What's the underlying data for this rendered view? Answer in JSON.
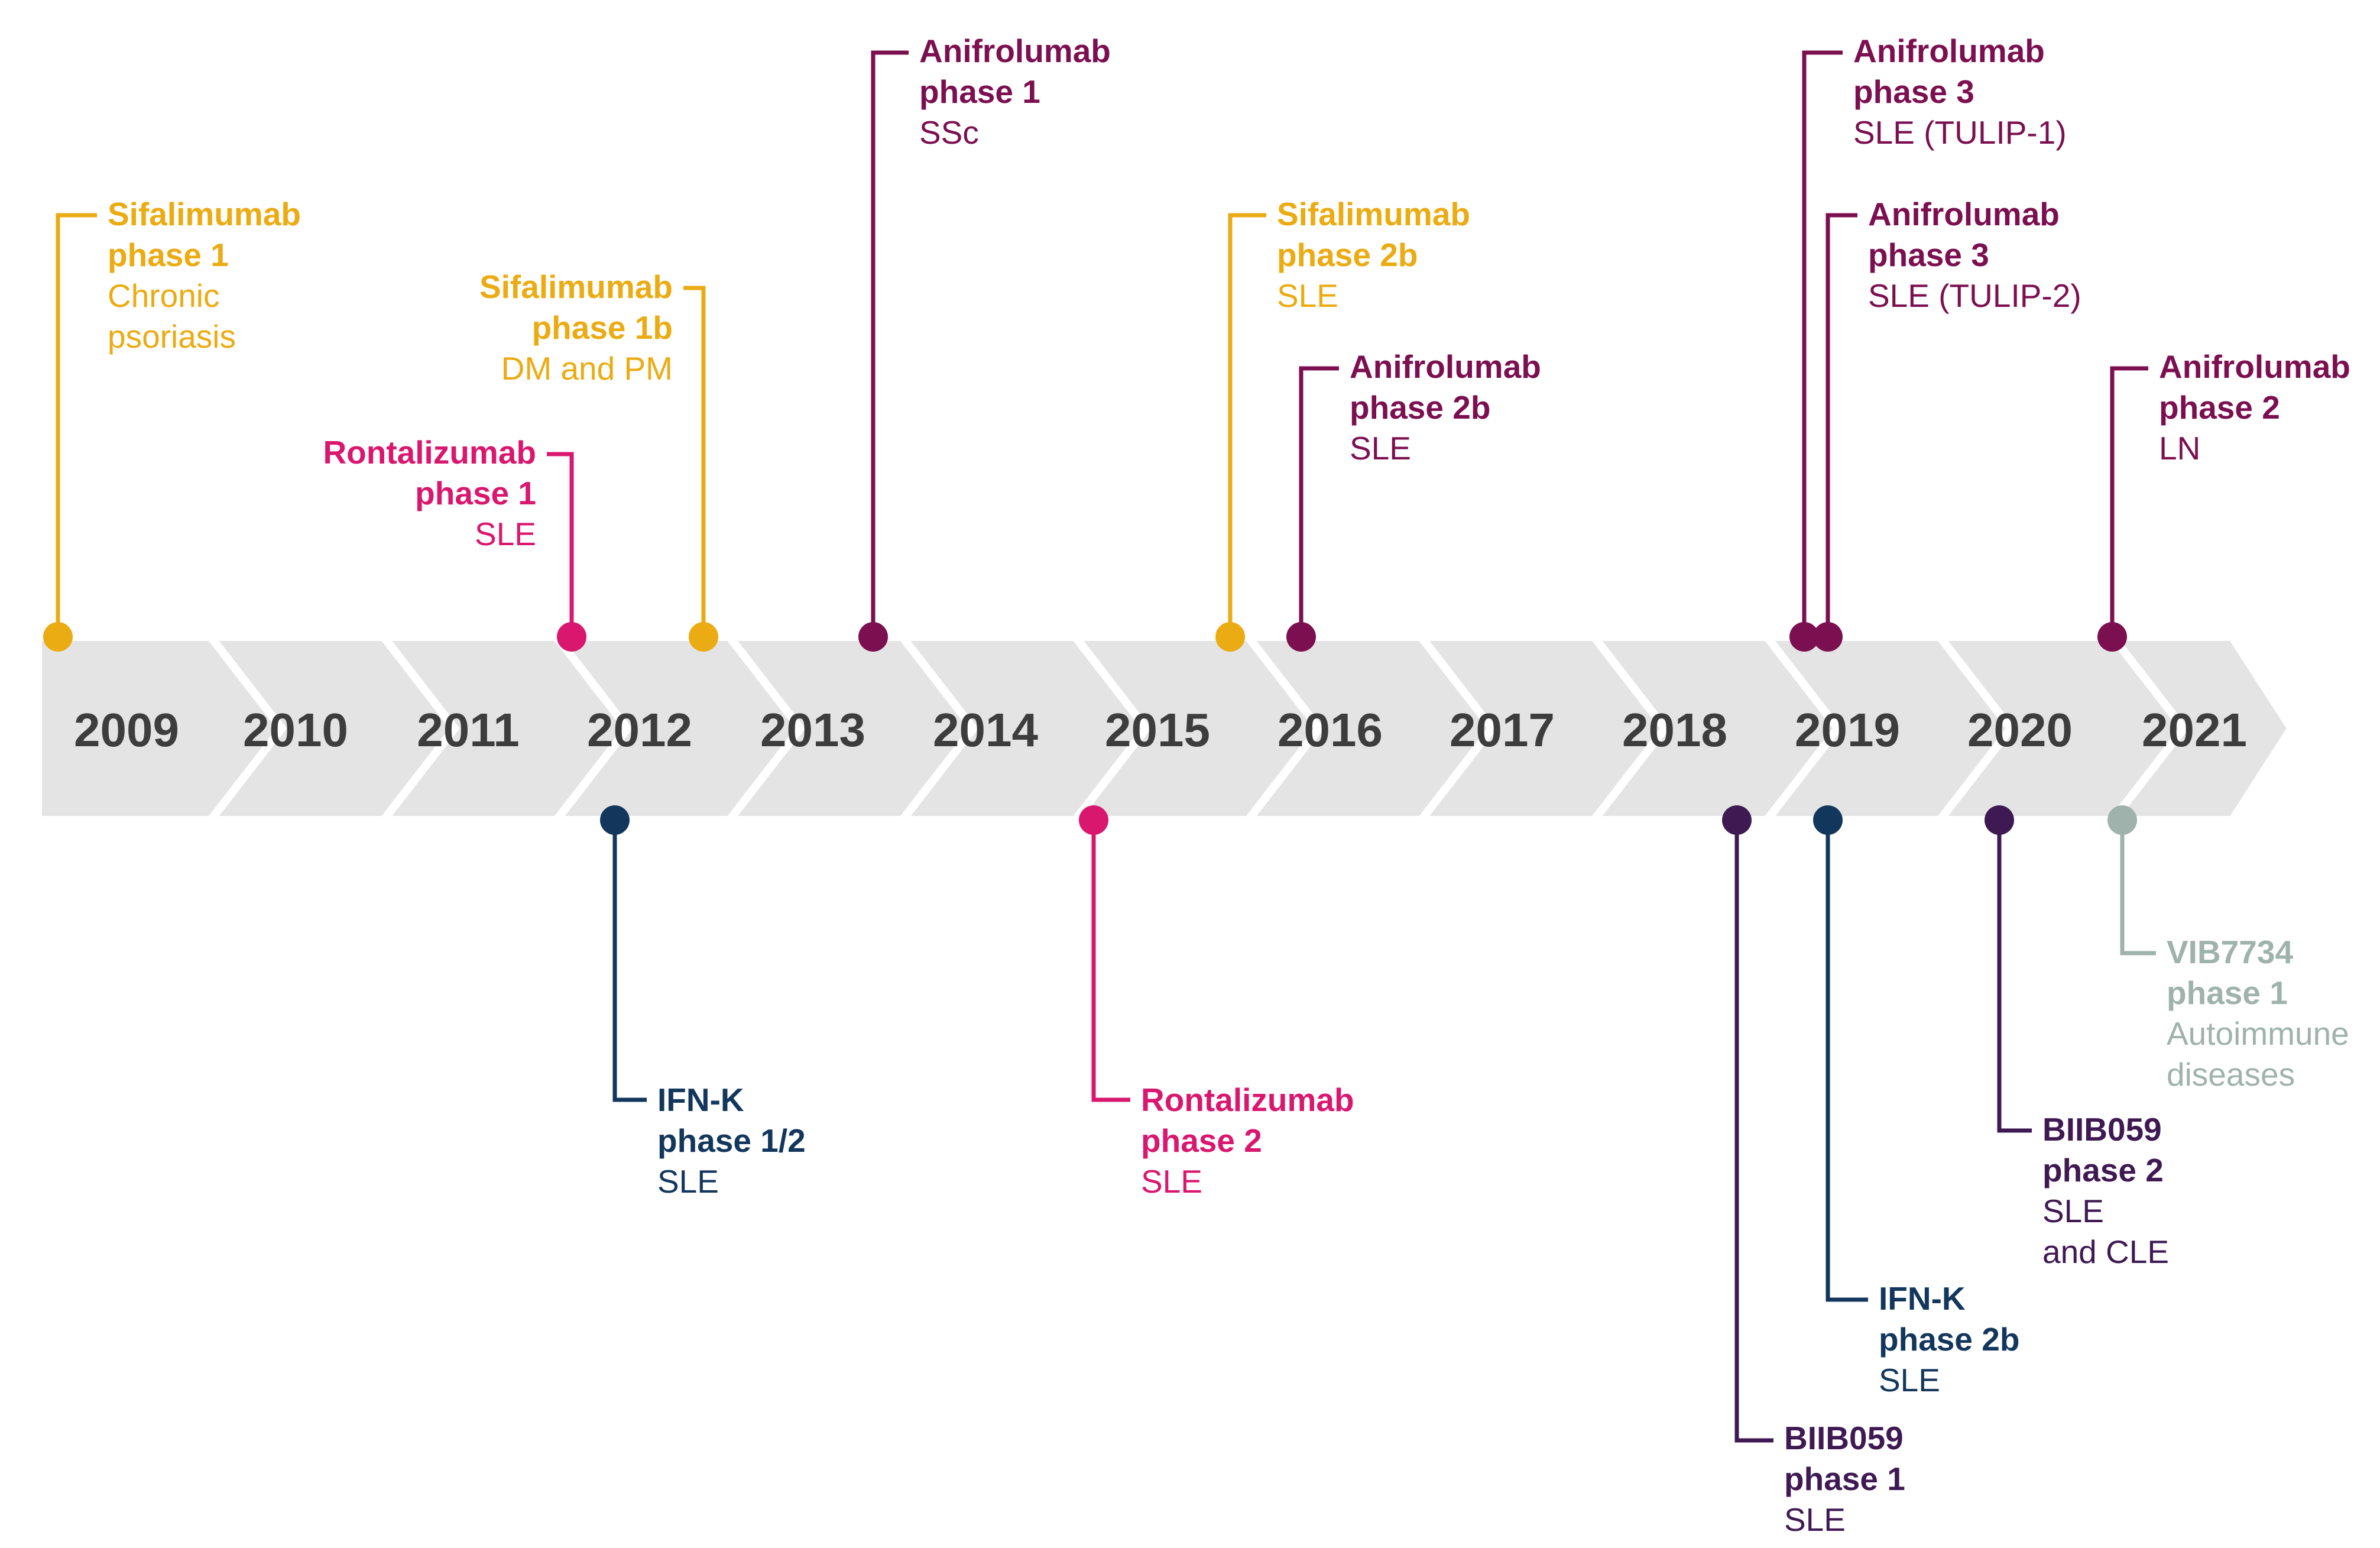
{
  "colors": {
    "sifalimumab": "#EBAB12",
    "rontalizumab": "#D9176E",
    "anifrolumab": "#7B0F50",
    "ifnk": "#13375C",
    "biib059": "#3F1A52",
    "vib7734": "#9FB2AB",
    "band": "#E3E4E3",
    "year_text": "#3d3d3d"
  },
  "years": [
    "2009",
    "2010",
    "2011",
    "2012",
    "2013",
    "2014",
    "2015",
    "2016",
    "2017",
    "2018",
    "2019",
    "2020",
    "2021"
  ],
  "events": [
    {
      "id": "sifalimumab-ph1",
      "drug": "Sifalimumab",
      "phase": "phase 1",
      "indication": [
        "Chronic",
        "psoriasis"
      ],
      "year": 2009,
      "side": "above",
      "color_key": "sifalimumab"
    },
    {
      "id": "sifalimumab-ph1b",
      "drug": "Sifalimumab",
      "phase": "phase 1b",
      "indication": [
        "DM and PM"
      ],
      "year": 2011,
      "side": "above",
      "color_key": "sifalimumab"
    },
    {
      "id": "rontalizumab-ph1",
      "drug": "Rontalizumab",
      "phase": "phase 1",
      "indication": [
        "SLE"
      ],
      "year": 2011,
      "side": "above",
      "color_key": "rontalizumab"
    },
    {
      "id": "ifnk-ph12",
      "drug": "IFN-K",
      "phase": "phase 1/2",
      "indication": [
        "SLE"
      ],
      "year": 2011,
      "side": "below",
      "color_key": "ifnk"
    },
    {
      "id": "anifrolumab-ph1",
      "drug": "Anifrolumab",
      "phase": "phase 1",
      "indication": [
        "SSc"
      ],
      "year": 2012,
      "side": "above",
      "color_key": "anifrolumab"
    },
    {
      "id": "rontalizumab-ph2",
      "drug": "Rontalizumab",
      "phase": "phase 2",
      "indication": [
        "SLE"
      ],
      "year": 2014,
      "side": "below",
      "color_key": "rontalizumab"
    },
    {
      "id": "sifalimumab-ph2b",
      "drug": "Sifalimumab",
      "phase": "phase 2b",
      "indication": [
        "SLE"
      ],
      "year": 2015,
      "side": "above",
      "color_key": "sifalimumab"
    },
    {
      "id": "anifrolumab-ph2b",
      "drug": "Anifrolumab",
      "phase": "phase 2b",
      "indication": [
        "SLE"
      ],
      "year": 2015,
      "side": "above",
      "color_key": "anifrolumab"
    },
    {
      "id": "biib059-ph1",
      "drug": "BIIB059",
      "phase": "phase 1",
      "indication": [
        "SLE"
      ],
      "year": 2017,
      "side": "below",
      "color_key": "biib059"
    },
    {
      "id": "anifrolumab-ph3-tulip1",
      "drug": "Anifrolumab",
      "phase": "phase 3",
      "indication": [
        "SLE (TULIP-1)"
      ],
      "year": 2018,
      "side": "above",
      "color_key": "anifrolumab"
    },
    {
      "id": "anifrolumab-ph3-tulip2",
      "drug": "Anifrolumab",
      "phase": "phase 3",
      "indication": [
        "SLE (TULIP-2)"
      ],
      "year": 2018,
      "side": "above",
      "color_key": "anifrolumab"
    },
    {
      "id": "ifnk-ph2b",
      "drug": "IFN-K",
      "phase": "phase 2b",
      "indication": [
        "SLE"
      ],
      "year": 2018,
      "side": "below",
      "color_key": "ifnk"
    },
    {
      "id": "biib059-ph2",
      "drug": "BIIB059",
      "phase": "phase 2",
      "indication": [
        "SLE",
        "and CLE"
      ],
      "year": 2019,
      "side": "below",
      "color_key": "biib059"
    },
    {
      "id": "anifrolumab-ph2",
      "drug": "Anifrolumab",
      "phase": "phase 2",
      "indication": [
        "LN"
      ],
      "year": 2020,
      "side": "above",
      "color_key": "anifrolumab"
    },
    {
      "id": "vib7734-ph1",
      "drug": "VIB7734",
      "phase": "phase 1",
      "indication": [
        "Autoimmune",
        "diseases"
      ],
      "year": 2020,
      "side": "below",
      "color_key": "vib7734"
    }
  ]
}
